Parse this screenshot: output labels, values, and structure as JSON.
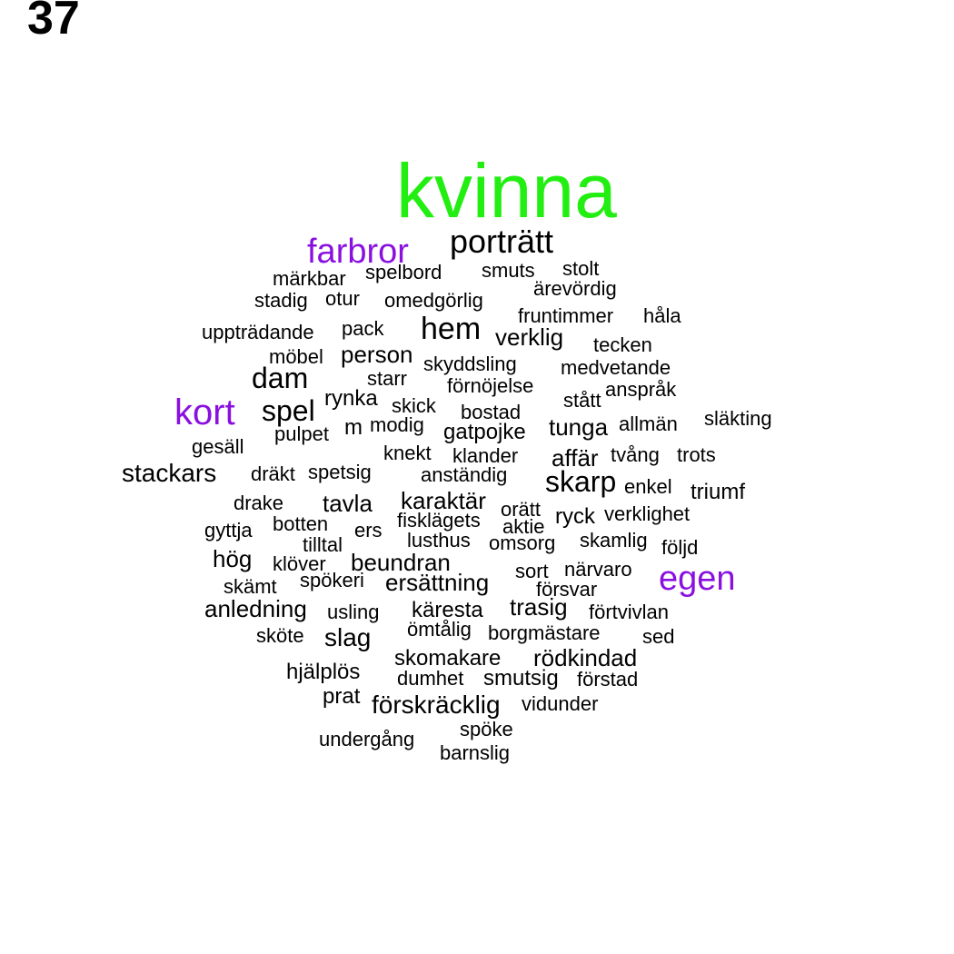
{
  "page_number": "37",
  "colors": {
    "top_word": "#22ee11",
    "highlight": "#8a10e0",
    "default": "#000000"
  },
  "words": [
    {
      "text": "kvinna",
      "emphasis": "top"
    },
    {
      "text": "farbror",
      "emphasis": "highlight"
    },
    {
      "text": "porträtt"
    },
    {
      "text": "märkbar"
    },
    {
      "text": "spelbord"
    },
    {
      "text": "smuts"
    },
    {
      "text": "stolt"
    },
    {
      "text": "ärevördig"
    },
    {
      "text": "stadig"
    },
    {
      "text": "otur"
    },
    {
      "text": "omedgörlig"
    },
    {
      "text": "fruntimmer"
    },
    {
      "text": "håla"
    },
    {
      "text": "uppträdande"
    },
    {
      "text": "pack"
    },
    {
      "text": "hem"
    },
    {
      "text": "verklig"
    },
    {
      "text": "tecken"
    },
    {
      "text": "möbel"
    },
    {
      "text": "person"
    },
    {
      "text": "skyddsling"
    },
    {
      "text": "medvetande"
    },
    {
      "text": "dam"
    },
    {
      "text": "starr"
    },
    {
      "text": "förnöjelse"
    },
    {
      "text": "anspråk"
    },
    {
      "text": "rynka"
    },
    {
      "text": "stått"
    },
    {
      "text": "kort",
      "emphasis": "highlight"
    },
    {
      "text": "spel"
    },
    {
      "text": "skick"
    },
    {
      "text": "bostad"
    },
    {
      "text": "släkting"
    },
    {
      "text": "m"
    },
    {
      "text": "modig"
    },
    {
      "text": "tunga"
    },
    {
      "text": "allmän"
    },
    {
      "text": "pulpet"
    },
    {
      "text": "gatpojke"
    },
    {
      "text": "gesäll"
    },
    {
      "text": "knekt"
    },
    {
      "text": "klander"
    },
    {
      "text": "affär"
    },
    {
      "text": "tvång"
    },
    {
      "text": "trots"
    },
    {
      "text": "stackars"
    },
    {
      "text": "dräkt"
    },
    {
      "text": "spetsig"
    },
    {
      "text": "anständig"
    },
    {
      "text": "skarp"
    },
    {
      "text": "enkel"
    },
    {
      "text": "triumf"
    },
    {
      "text": "karaktär"
    },
    {
      "text": "drake"
    },
    {
      "text": "tavla"
    },
    {
      "text": "orätt"
    },
    {
      "text": "fisklägets"
    },
    {
      "text": "ryck"
    },
    {
      "text": "verklighet"
    },
    {
      "text": "gyttja"
    },
    {
      "text": "botten"
    },
    {
      "text": "aktie"
    },
    {
      "text": "ers"
    },
    {
      "text": "lusthus"
    },
    {
      "text": "tilltal"
    },
    {
      "text": "omsorg"
    },
    {
      "text": "skamlig"
    },
    {
      "text": "följd"
    },
    {
      "text": "hög"
    },
    {
      "text": "klöver"
    },
    {
      "text": "beundran"
    },
    {
      "text": "sort"
    },
    {
      "text": "närvaro"
    },
    {
      "text": "egen",
      "emphasis": "highlight"
    },
    {
      "text": "spökeri"
    },
    {
      "text": "ersättning"
    },
    {
      "text": "skämt"
    },
    {
      "text": "försvar"
    },
    {
      "text": "anledning"
    },
    {
      "text": "käresta"
    },
    {
      "text": "trasig"
    },
    {
      "text": "usling"
    },
    {
      "text": "förtvivlan"
    },
    {
      "text": "ömtålig"
    },
    {
      "text": "borgmästare"
    },
    {
      "text": "sköte"
    },
    {
      "text": "slag"
    },
    {
      "text": "sed"
    },
    {
      "text": "skomakare"
    },
    {
      "text": "rödkindad"
    },
    {
      "text": "hjälplös"
    },
    {
      "text": "dumhet"
    },
    {
      "text": "smutsig"
    },
    {
      "text": "förstad"
    },
    {
      "text": "prat"
    },
    {
      "text": "förskräcklig"
    },
    {
      "text": "vidunder"
    },
    {
      "text": "spöke"
    },
    {
      "text": "undergång"
    },
    {
      "text": "barnslig"
    }
  ]
}
